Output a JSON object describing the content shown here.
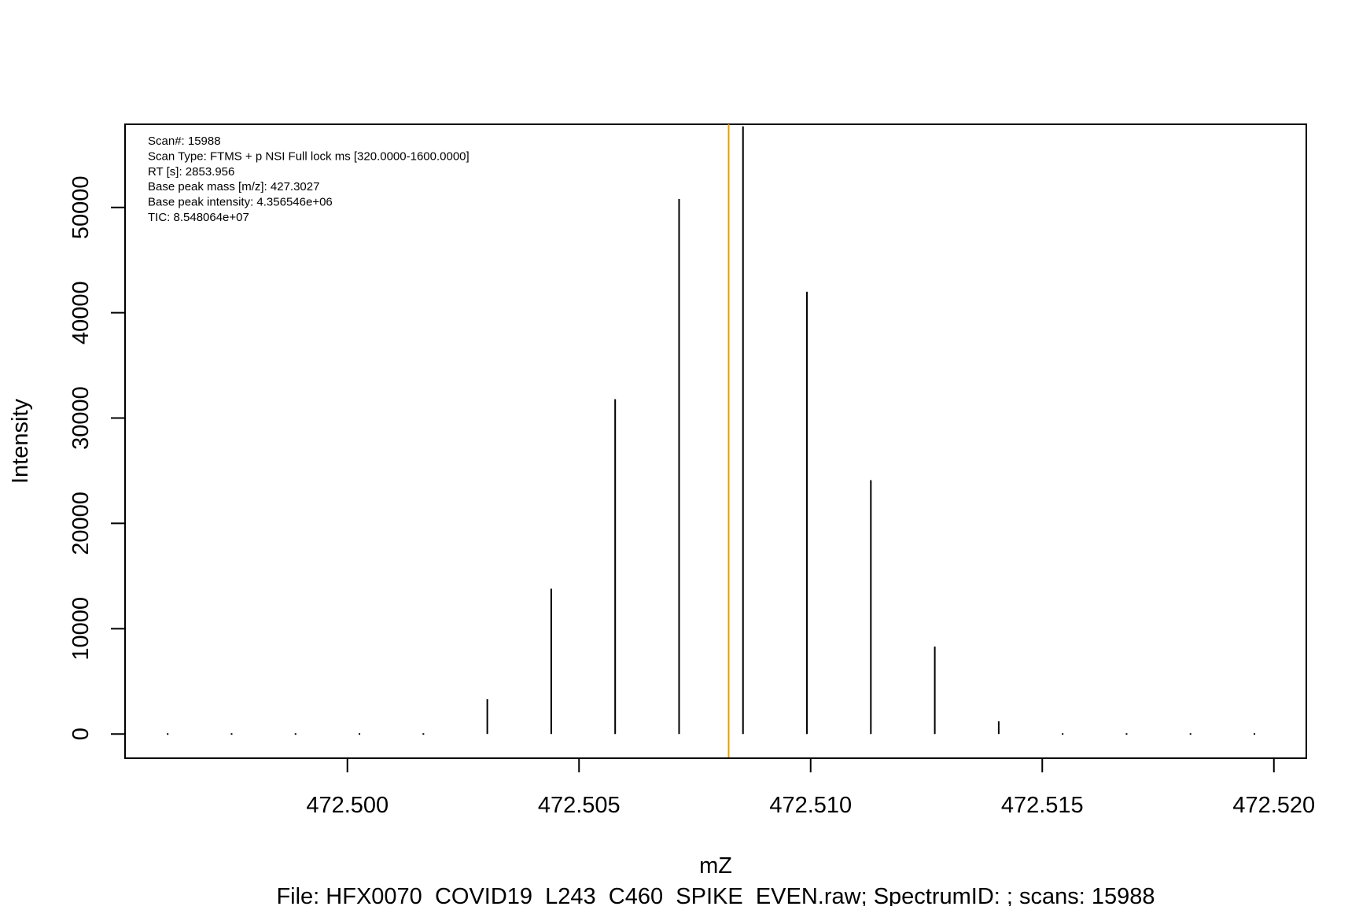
{
  "chart_data": {
    "type": "bar",
    "subtype": "stick-spectrum",
    "title": "",
    "xlabel": "mZ",
    "ylabel": "Intensity",
    "caption": "File: HFX0070_COVID19_L243_C460_SPIKE_EVEN.raw; SpectrumID: ; scans: 15988",
    "xlim": [
      472.4952,
      472.5207
    ],
    "ylim": [
      -2300,
      57900
    ],
    "x_ticks": [
      472.5,
      472.505,
      472.51,
      472.515,
      472.52
    ],
    "x_tick_labels": [
      "472.500",
      "472.505",
      "472.510",
      "472.515",
      "472.520"
    ],
    "y_ticks": [
      0,
      10000,
      20000,
      30000,
      40000,
      50000
    ],
    "y_tick_labels": [
      "0",
      "10000",
      "20000",
      "30000",
      "40000",
      "50000"
    ],
    "grid": false,
    "legend": "none",
    "peaks": {
      "x": [
        472.49612,
        472.4975,
        472.49888,
        472.50026,
        472.50164,
        472.50302,
        472.5044,
        472.50578,
        472.50716,
        472.50854,
        472.50992,
        472.5113,
        472.51268,
        472.51406,
        472.51544,
        472.51682,
        472.5182,
        472.51958
      ],
      "y": [
        0,
        0,
        0,
        0,
        0,
        3300,
        13800,
        31800,
        50800,
        57700,
        42000,
        24100,
        8300,
        1200,
        0,
        0,
        0,
        0
      ]
    },
    "reference_line": {
      "x": 472.50823,
      "orientation": "vertical",
      "color": "#E69F00"
    },
    "annotations": [
      {
        "label": "Scan#:",
        "value": "15988"
      },
      {
        "label": "Scan Type:",
        "value": "FTMS + p NSI Full lock ms [320.0000-1600.0000]"
      },
      {
        "label": "RT [s]:",
        "value": "2853.956"
      },
      {
        "label": "Base peak mass [m/z]:",
        "value": "427.3027"
      },
      {
        "label": "Base peak intensity:",
        "value": "4.356546e+06"
      },
      {
        "label": "TIC:",
        "value": "8.548064e+07"
      }
    ],
    "colors": {
      "peaks": "#000000",
      "frame": "#000000",
      "reference_line": "#E69F00"
    }
  }
}
